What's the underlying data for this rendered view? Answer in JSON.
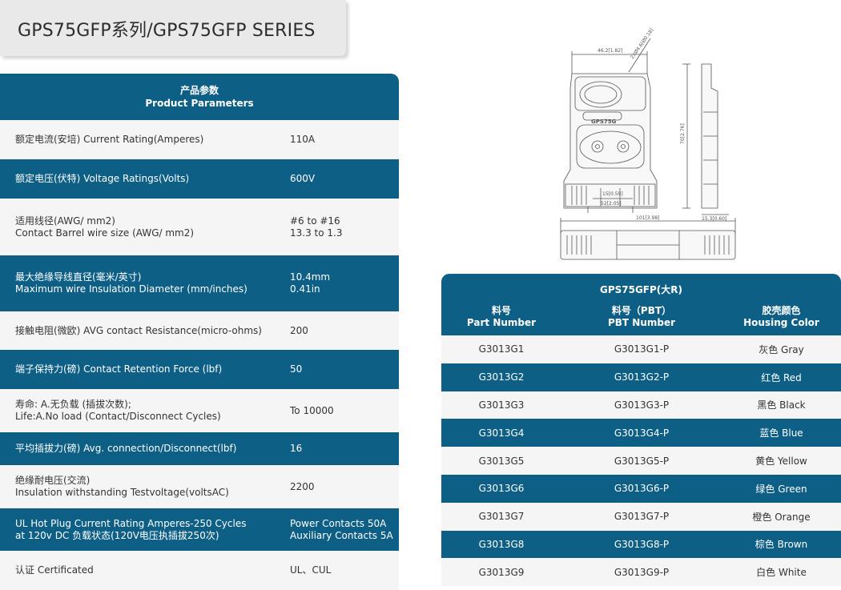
{
  "title": "GPS75GFP系列/GPS75GFP SERIES",
  "params": {
    "header_cn": "产品参数",
    "header_en": "Product Parameters",
    "rows": [
      {
        "label": "额定电流(安培)  Current Rating(Amperes)",
        "value": "110A"
      },
      {
        "label": "额定电压(伏特)  Voltage Ratings(Volts)",
        "value": "600V"
      },
      {
        "label": "适用线径(AWG/ mm2)\nContact Barrel wire size (AWG/ mm2)",
        "value": "#6 to #16\n13.3 to 1.3"
      },
      {
        "label": "最大绝缘导线直径(毫米/英寸)\nMaximum wire Insulation Diameter (mm/inches)",
        "value": "10.4mm\n0.41in"
      },
      {
        "label": "接触电阻(微欧)  AVG contact Resistance(micro-ohms)",
        "value": "200"
      },
      {
        "label": "端子保持力(磅) Contact Retention Force (lbf)",
        "value": "50"
      },
      {
        "label": "寿命:  A.无负载  (插拔次数);\nLife:A.No load (Contact/Disconnect Cycles)",
        "value": "To 10000"
      },
      {
        "label": "平均插拔力(磅)  Avg. connection/Disconnect(lbf)",
        "value": "16"
      },
      {
        "label": "绝缘耐电压(交流)\nInsulation withstanding Testvoltage(voltsAC)",
        "value": "2200"
      },
      {
        "label": "UL Hot Plug Current Rating Amperes-250 Cycles\nat 120v DC 负载状态(120V电压执插拔250次)",
        "value": "Power Contacts 50A\nAuxiliary Contacts 5A"
      },
      {
        "label": "认证 Certificated",
        "value": "UL、CUL"
      }
    ]
  },
  "drawing": {
    "dim_width": "46.2[1.82]",
    "dim_hole": "2XØ4.6[Ø0.18]",
    "dim_height": "70[2.76]",
    "dim_side": "15.3[0.60]",
    "dim_contact_a": "15[0.59]",
    "dim_contact_b": "52[2.05]",
    "dim_length": "101[3.98]",
    "housing_text": "GPS75G"
  },
  "parts": {
    "series_label": "GPS75GFP(大R)",
    "col1_cn": "料号",
    "col1_en": "Part Number",
    "col2_cn": "料号（PBT）",
    "col2_en": "PBT Number",
    "col3_cn": "胶壳颜色",
    "col3_en": "Housing Color",
    "rows": [
      {
        "part": "G3013G1",
        "pbt": "G3013G1-P",
        "color": "灰色 Gray"
      },
      {
        "part": "G3013G2",
        "pbt": "G3013G2-P",
        "color": "红色 Red"
      },
      {
        "part": "G3013G3",
        "pbt": "G3013G3-P",
        "color": "黑色 Black"
      },
      {
        "part": "G3013G4",
        "pbt": "G3013G4-P",
        "color": "蓝色 Blue"
      },
      {
        "part": "G3013G5",
        "pbt": "G3013G5-P",
        "color": "黄色 Yellow"
      },
      {
        "part": "G3013G6",
        "pbt": "G3013G6-P",
        "color": "绿色 Green"
      },
      {
        "part": "G3013G7",
        "pbt": "G3013G7-P",
        "color": "橙色 Orange"
      },
      {
        "part": "G3013G8",
        "pbt": "G3013G8-P",
        "color": "棕色 Brown"
      },
      {
        "part": "G3013G9",
        "pbt": "G3013G9-P",
        "color": "白色 White"
      }
    ]
  },
  "colors": {
    "accent": "#0e5f86",
    "row_light": "#f5f5f5",
    "title_bg": "#e9e9e9"
  }
}
